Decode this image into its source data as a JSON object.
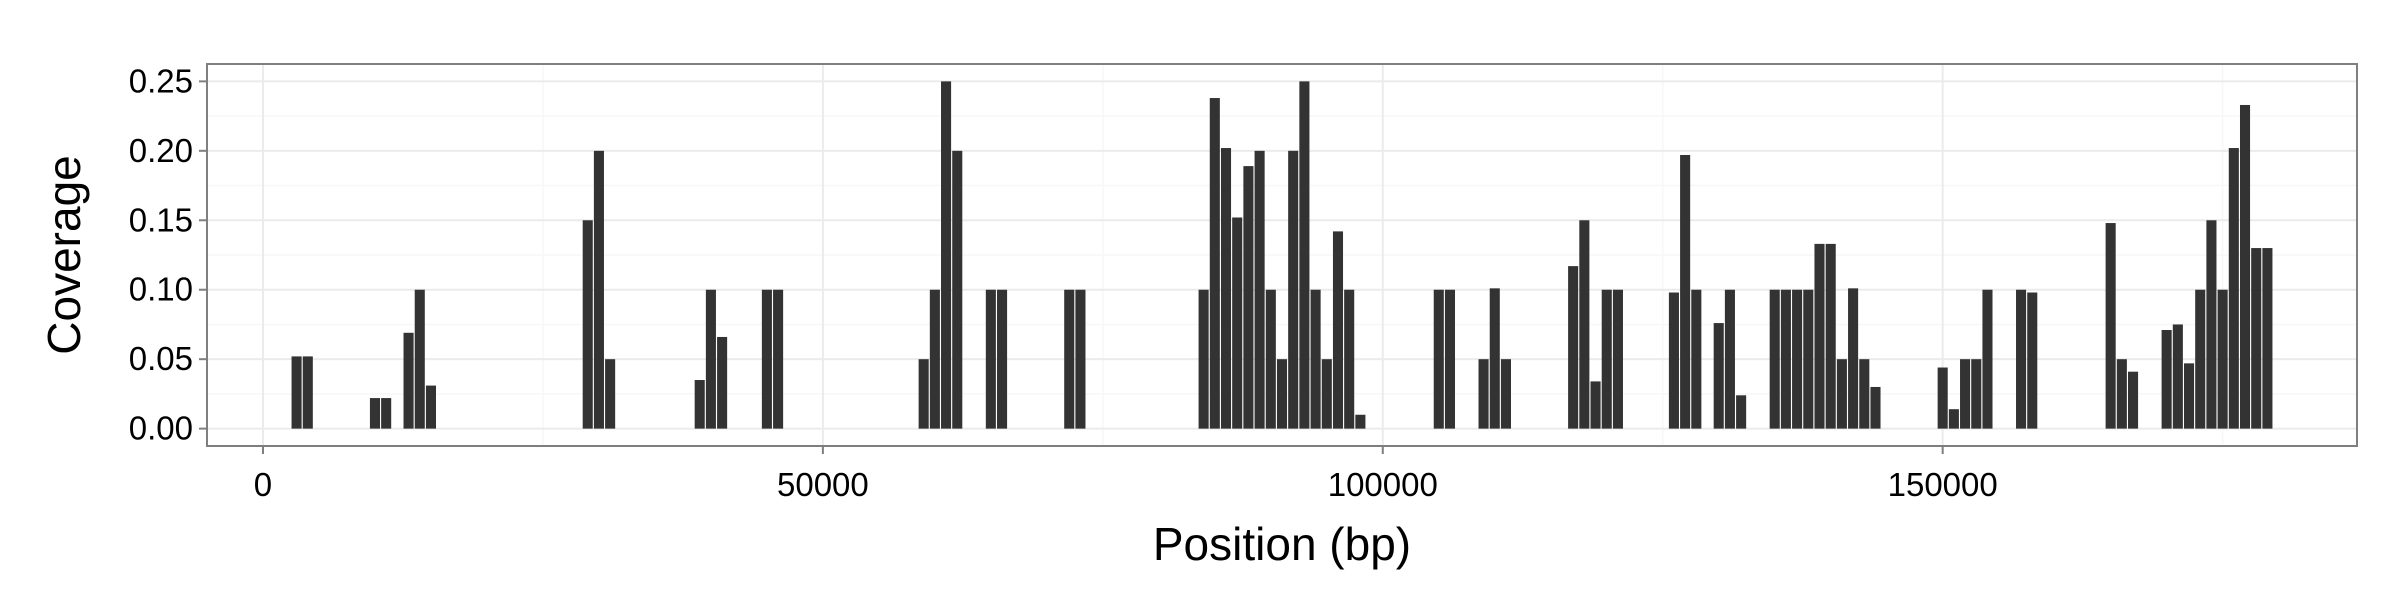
{
  "chart_data": {
    "type": "bar",
    "title": "",
    "xlabel": "Position (bp)",
    "ylabel": "Coverage",
    "xlim": [
      -5000,
      187000
    ],
    "ylim": [
      -0.0125,
      0.2625
    ],
    "x_ticks": [
      0,
      50000,
      100000,
      150000
    ],
    "x_tick_labels": [
      "0",
      "50000",
      "100000",
      "150000"
    ],
    "y_ticks": [
      0,
      0.05,
      0.1,
      0.15,
      0.2,
      0.25
    ],
    "y_tick_labels": [
      "0.00",
      "0.05",
      "0.10",
      "0.15",
      "0.20",
      "0.25"
    ],
    "grid": true,
    "bar_color": "#333333",
    "bin_width": 1000,
    "x": [
      3000,
      4000,
      10000,
      11000,
      13000,
      14000,
      15000,
      29000,
      30000,
      31000,
      39000,
      40000,
      41000,
      45000,
      46000,
      59000,
      60000,
      61000,
      62000,
      65000,
      66000,
      72000,
      73000,
      84000,
      85000,
      86000,
      87000,
      88000,
      89000,
      90000,
      91000,
      92000,
      93000,
      94000,
      95000,
      96000,
      97000,
      98000,
      105000,
      106000,
      109000,
      110000,
      111000,
      117000,
      118000,
      119000,
      120000,
      121000,
      126000,
      127000,
      128000,
      130000,
      131000,
      132000,
      135000,
      136000,
      137000,
      138000,
      139000,
      140000,
      141000,
      142000,
      143000,
      144000,
      150000,
      151000,
      152000,
      153000,
      154000,
      157000,
      158000,
      165000,
      166000,
      167000,
      170000,
      171000,
      172000,
      173000,
      174000,
      175000,
      176000,
      177000,
      178000,
      179000
    ],
    "values": [
      0.052,
      0.052,
      0.022,
      0.022,
      0.069,
      0.1,
      0.031,
      0.15,
      0.2,
      0.05,
      0.035,
      0.1,
      0.066,
      0.1,
      0.1,
      0.05,
      0.1,
      0.25,
      0.2,
      0.1,
      0.1,
      0.1,
      0.1,
      0.1,
      0.238,
      0.202,
      0.152,
      0.189,
      0.2,
      0.1,
      0.05,
      0.2,
      0.25,
      0.1,
      0.05,
      0.142,
      0.1,
      0.01,
      0.1,
      0.1,
      0.05,
      0.101,
      0.05,
      0.117,
      0.15,
      0.034,
      0.1,
      0.1,
      0.098,
      0.197,
      0.1,
      0.076,
      0.1,
      0.024,
      0.1,
      0.1,
      0.1,
      0.1,
      0.133,
      0.133,
      0.05,
      0.101,
      0.05,
      0.03,
      0.044,
      0.014,
      0.05,
      0.05,
      0.1,
      0.1,
      0.098,
      0.148,
      0.05,
      0.041,
      0.071,
      0.075,
      0.047,
      0.1,
      0.15,
      0.1,
      0.202,
      0.233,
      0.13,
      0.13
    ]
  }
}
